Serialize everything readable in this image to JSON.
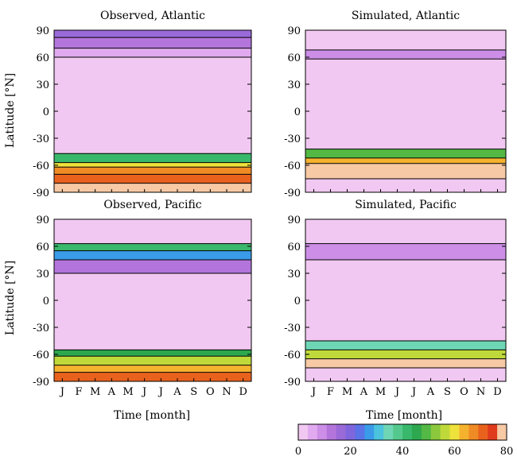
{
  "chart_data": {
    "type": "heatmap",
    "colorbar": {
      "min": 0,
      "max": 80,
      "step": 4,
      "ticks": [
        "0",
        "20",
        "40",
        "60",
        "80"
      ],
      "colors": [
        "#f1c8f1",
        "#e1aaf0",
        "#cc8ee6",
        "#b375db",
        "#9a6ad8",
        "#7f66dd",
        "#5a73e6",
        "#3a9be8",
        "#4cc3dd",
        "#6ed6b4",
        "#55c98d",
        "#39b86c",
        "#2ea84f",
        "#53b844",
        "#8cc83c",
        "#c0d93a",
        "#efe13b",
        "#f5b22e",
        "#ef8b25",
        "#e9621d",
        "#df3b1c",
        "#f7c9a4"
      ]
    },
    "x_ticks": [
      "J",
      "F",
      "M",
      "A",
      "M",
      "J",
      "J",
      "A",
      "S",
      "O",
      "N",
      "D"
    ],
    "y_ticks": [
      "90",
      "60",
      "30",
      "0",
      "-30",
      "-60",
      "-90"
    ],
    "xlabel": "Time [month]",
    "ylabel": "Latitude [°N]",
    "panels": [
      {
        "title": "Observed, Atlantic",
        "bands": [
          {
            "from": 90,
            "to": 82,
            "value": 18
          },
          {
            "from": 82,
            "to": 70,
            "value": 12
          },
          {
            "from": 70,
            "to": 60,
            "value": 6
          },
          {
            "from": 60,
            "to": -47,
            "value": 1
          },
          {
            "from": -47,
            "to": -57,
            "value": 40
          },
          {
            "from": -57,
            "to": -62,
            "value": 60
          },
          {
            "from": -62,
            "to": -70,
            "value": 68
          },
          {
            "from": -70,
            "to": -80,
            "value": 72
          },
          {
            "from": -80,
            "to": -90,
            "value": 80
          }
        ]
      },
      {
        "title": "Simulated, Atlantic",
        "bands": [
          {
            "from": 90,
            "to": 68,
            "value": 1
          },
          {
            "from": 68,
            "to": 58,
            "value": 8
          },
          {
            "from": 58,
            "to": -42,
            "value": 1
          },
          {
            "from": -42,
            "to": -52,
            "value": 48
          },
          {
            "from": -52,
            "to": -58,
            "value": 64
          },
          {
            "from": -58,
            "to": -75,
            "value": 80
          },
          {
            "from": -75,
            "to": -90,
            "value": 1
          }
        ]
      },
      {
        "title": "Observed, Pacific",
        "bands": [
          {
            "from": 90,
            "to": 63,
            "value": 1
          },
          {
            "from": 63,
            "to": 55,
            "value": 40
          },
          {
            "from": 55,
            "to": 45,
            "value": 28
          },
          {
            "from": 45,
            "to": 30,
            "value": 12
          },
          {
            "from": 30,
            "to": -55,
            "value": 1
          },
          {
            "from": -55,
            "to": -62,
            "value": 44
          },
          {
            "from": -62,
            "to": -72,
            "value": 56
          },
          {
            "from": -72,
            "to": -80,
            "value": 64
          },
          {
            "from": -80,
            "to": -90,
            "value": 72
          }
        ]
      },
      {
        "title": "Simulated, Pacific",
        "bands": [
          {
            "from": 90,
            "to": 63,
            "value": 1
          },
          {
            "from": 63,
            "to": 45,
            "value": 10
          },
          {
            "from": 45,
            "to": -45,
            "value": 1
          },
          {
            "from": -45,
            "to": -55,
            "value": 36
          },
          {
            "from": -55,
            "to": -65,
            "value": 56
          },
          {
            "from": -65,
            "to": -75,
            "value": 80
          },
          {
            "from": -75,
            "to": -90,
            "value": 1
          }
        ]
      }
    ]
  }
}
